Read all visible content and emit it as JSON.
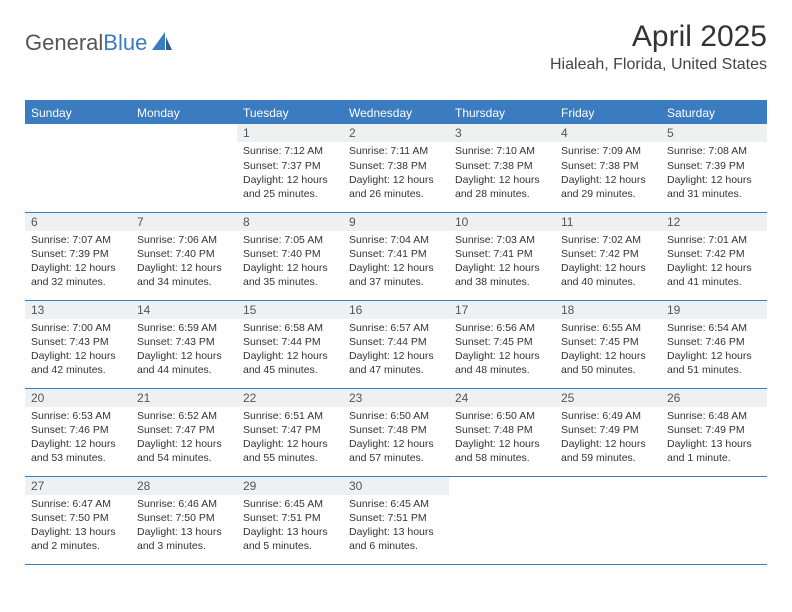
{
  "brand": {
    "part1": "General",
    "part2": "Blue"
  },
  "title": "April 2025",
  "location": "Hialeah, Florida, United States",
  "colors": {
    "accent": "#3b7bbf",
    "daynum_bg": "#eef0f2",
    "text": "#333333",
    "bg": "#ffffff"
  },
  "weekdays": [
    "Sunday",
    "Monday",
    "Tuesday",
    "Wednesday",
    "Thursday",
    "Friday",
    "Saturday"
  ],
  "weeks": [
    [
      null,
      null,
      {
        "n": "1",
        "sunrise": "Sunrise: 7:12 AM",
        "sunset": "Sunset: 7:37 PM",
        "daylight": "Daylight: 12 hours and 25 minutes."
      },
      {
        "n": "2",
        "sunrise": "Sunrise: 7:11 AM",
        "sunset": "Sunset: 7:38 PM",
        "daylight": "Daylight: 12 hours and 26 minutes."
      },
      {
        "n": "3",
        "sunrise": "Sunrise: 7:10 AM",
        "sunset": "Sunset: 7:38 PM",
        "daylight": "Daylight: 12 hours and 28 minutes."
      },
      {
        "n": "4",
        "sunrise": "Sunrise: 7:09 AM",
        "sunset": "Sunset: 7:38 PM",
        "daylight": "Daylight: 12 hours and 29 minutes."
      },
      {
        "n": "5",
        "sunrise": "Sunrise: 7:08 AM",
        "sunset": "Sunset: 7:39 PM",
        "daylight": "Daylight: 12 hours and 31 minutes."
      }
    ],
    [
      {
        "n": "6",
        "sunrise": "Sunrise: 7:07 AM",
        "sunset": "Sunset: 7:39 PM",
        "daylight": "Daylight: 12 hours and 32 minutes."
      },
      {
        "n": "7",
        "sunrise": "Sunrise: 7:06 AM",
        "sunset": "Sunset: 7:40 PM",
        "daylight": "Daylight: 12 hours and 34 minutes."
      },
      {
        "n": "8",
        "sunrise": "Sunrise: 7:05 AM",
        "sunset": "Sunset: 7:40 PM",
        "daylight": "Daylight: 12 hours and 35 minutes."
      },
      {
        "n": "9",
        "sunrise": "Sunrise: 7:04 AM",
        "sunset": "Sunset: 7:41 PM",
        "daylight": "Daylight: 12 hours and 37 minutes."
      },
      {
        "n": "10",
        "sunrise": "Sunrise: 7:03 AM",
        "sunset": "Sunset: 7:41 PM",
        "daylight": "Daylight: 12 hours and 38 minutes."
      },
      {
        "n": "11",
        "sunrise": "Sunrise: 7:02 AM",
        "sunset": "Sunset: 7:42 PM",
        "daylight": "Daylight: 12 hours and 40 minutes."
      },
      {
        "n": "12",
        "sunrise": "Sunrise: 7:01 AM",
        "sunset": "Sunset: 7:42 PM",
        "daylight": "Daylight: 12 hours and 41 minutes."
      }
    ],
    [
      {
        "n": "13",
        "sunrise": "Sunrise: 7:00 AM",
        "sunset": "Sunset: 7:43 PM",
        "daylight": "Daylight: 12 hours and 42 minutes."
      },
      {
        "n": "14",
        "sunrise": "Sunrise: 6:59 AM",
        "sunset": "Sunset: 7:43 PM",
        "daylight": "Daylight: 12 hours and 44 minutes."
      },
      {
        "n": "15",
        "sunrise": "Sunrise: 6:58 AM",
        "sunset": "Sunset: 7:44 PM",
        "daylight": "Daylight: 12 hours and 45 minutes."
      },
      {
        "n": "16",
        "sunrise": "Sunrise: 6:57 AM",
        "sunset": "Sunset: 7:44 PM",
        "daylight": "Daylight: 12 hours and 47 minutes."
      },
      {
        "n": "17",
        "sunrise": "Sunrise: 6:56 AM",
        "sunset": "Sunset: 7:45 PM",
        "daylight": "Daylight: 12 hours and 48 minutes."
      },
      {
        "n": "18",
        "sunrise": "Sunrise: 6:55 AM",
        "sunset": "Sunset: 7:45 PM",
        "daylight": "Daylight: 12 hours and 50 minutes."
      },
      {
        "n": "19",
        "sunrise": "Sunrise: 6:54 AM",
        "sunset": "Sunset: 7:46 PM",
        "daylight": "Daylight: 12 hours and 51 minutes."
      }
    ],
    [
      {
        "n": "20",
        "sunrise": "Sunrise: 6:53 AM",
        "sunset": "Sunset: 7:46 PM",
        "daylight": "Daylight: 12 hours and 53 minutes."
      },
      {
        "n": "21",
        "sunrise": "Sunrise: 6:52 AM",
        "sunset": "Sunset: 7:47 PM",
        "daylight": "Daylight: 12 hours and 54 minutes."
      },
      {
        "n": "22",
        "sunrise": "Sunrise: 6:51 AM",
        "sunset": "Sunset: 7:47 PM",
        "daylight": "Daylight: 12 hours and 55 minutes."
      },
      {
        "n": "23",
        "sunrise": "Sunrise: 6:50 AM",
        "sunset": "Sunset: 7:48 PM",
        "daylight": "Daylight: 12 hours and 57 minutes."
      },
      {
        "n": "24",
        "sunrise": "Sunrise: 6:50 AM",
        "sunset": "Sunset: 7:48 PM",
        "daylight": "Daylight: 12 hours and 58 minutes."
      },
      {
        "n": "25",
        "sunrise": "Sunrise: 6:49 AM",
        "sunset": "Sunset: 7:49 PM",
        "daylight": "Daylight: 12 hours and 59 minutes."
      },
      {
        "n": "26",
        "sunrise": "Sunrise: 6:48 AM",
        "sunset": "Sunset: 7:49 PM",
        "daylight": "Daylight: 13 hours and 1 minute."
      }
    ],
    [
      {
        "n": "27",
        "sunrise": "Sunrise: 6:47 AM",
        "sunset": "Sunset: 7:50 PM",
        "daylight": "Daylight: 13 hours and 2 minutes."
      },
      {
        "n": "28",
        "sunrise": "Sunrise: 6:46 AM",
        "sunset": "Sunset: 7:50 PM",
        "daylight": "Daylight: 13 hours and 3 minutes."
      },
      {
        "n": "29",
        "sunrise": "Sunrise: 6:45 AM",
        "sunset": "Sunset: 7:51 PM",
        "daylight": "Daylight: 13 hours and 5 minutes."
      },
      {
        "n": "30",
        "sunrise": "Sunrise: 6:45 AM",
        "sunset": "Sunset: 7:51 PM",
        "daylight": "Daylight: 13 hours and 6 minutes."
      },
      null,
      null,
      null
    ]
  ]
}
